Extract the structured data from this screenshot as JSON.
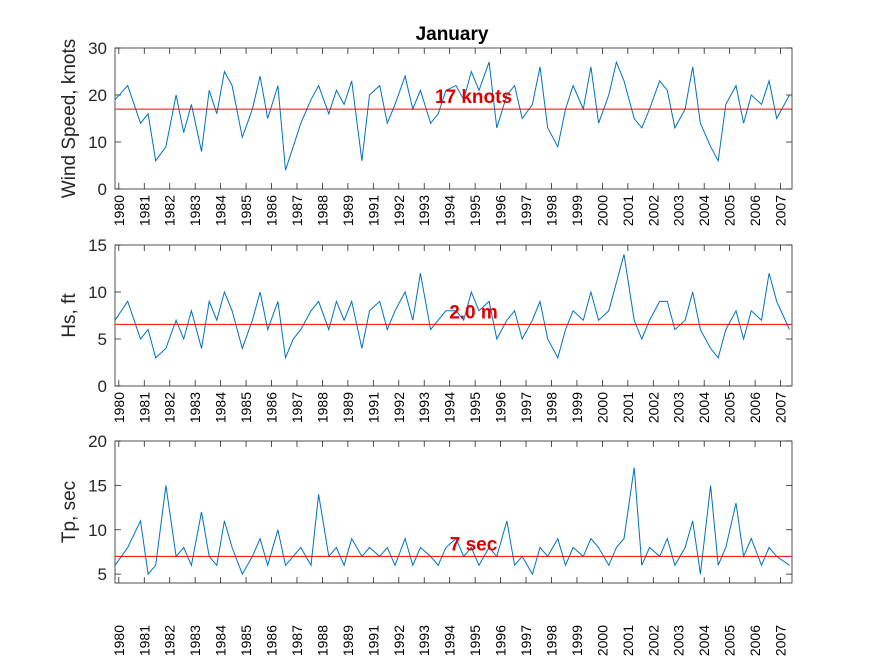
{
  "figure_title": "January",
  "colors": {
    "series": "#0072BD",
    "reference": "#FF0000",
    "axis": "#262626",
    "annotation": "#E00000"
  },
  "x_tick_labels": [
    "1980",
    "1981",
    "1982",
    "1983",
    "1984",
    "1985",
    "1986",
    "1987",
    "1988",
    "1989",
    "1991",
    "1992",
    "1993",
    "1994",
    "1995",
    "1996",
    "1997",
    "1998",
    "1999",
    "2000",
    "2001",
    "2002",
    "2003",
    "2004",
    "2005",
    "2006",
    "2007"
  ],
  "chart_data": [
    {
      "type": "line",
      "title": "January",
      "ylabel": "Wind Speed, knots",
      "ylim": [
        0,
        30
      ],
      "yticks": [
        0,
        10,
        20,
        30
      ],
      "reference_value": 17,
      "annotation": "17 knots",
      "series": [
        {
          "name": "Wind Speed",
          "x": [
            0,
            0.5,
            1,
            1.3,
            1.6,
            2,
            2.4,
            2.7,
            3,
            3.4,
            3.7,
            4,
            4.3,
            4.6,
            5,
            5.4,
            5.7,
            6,
            6.4,
            6.7,
            7,
            7.3,
            7.7,
            8,
            8.4,
            8.7,
            9,
            9.3,
            9.7,
            10,
            10.4,
            10.7,
            11,
            11.4,
            11.7,
            12,
            12.4,
            12.7,
            13,
            13.4,
            13.7,
            14,
            14.3,
            14.7,
            15,
            15.4,
            15.7,
            16,
            16.4,
            16.7,
            17,
            17.4,
            17.7,
            18,
            18.4,
            18.7,
            19,
            19.4,
            19.7,
            20,
            20.4,
            20.7,
            21,
            21.4,
            21.7,
            22,
            22.4,
            22.7,
            23,
            23.4,
            23.7,
            24,
            24.4,
            24.7,
            25,
            25.4,
            25.7,
            26,
            26.5
          ],
          "values": [
            19,
            22,
            14,
            16,
            6,
            9,
            20,
            12,
            18,
            8,
            21,
            16,
            25,
            22,
            11,
            17,
            24,
            15,
            22,
            4,
            9,
            14,
            19,
            22,
            16,
            21,
            18,
            23,
            6,
            20,
            22,
            14,
            18,
            24,
            17,
            21,
            14,
            16,
            21,
            22,
            19,
            25,
            21,
            27,
            13,
            20,
            22,
            15,
            18,
            26,
            13,
            9,
            17,
            22,
            17,
            26,
            14,
            20,
            27,
            23,
            15,
            13,
            17,
            23,
            21,
            13,
            17,
            26,
            14,
            9,
            6,
            18,
            22,
            14,
            20,
            18,
            23,
            15,
            20
          ]
        }
      ]
    },
    {
      "type": "line",
      "title": "",
      "ylabel": "Hs, ft",
      "ylim": [
        0,
        15
      ],
      "yticks": [
        0,
        5,
        10,
        15
      ],
      "reference_value": 6.56,
      "annotation": "2.0 m",
      "series": [
        {
          "name": "Hs",
          "x": [
            0,
            0.5,
            1,
            1.3,
            1.6,
            2,
            2.4,
            2.7,
            3,
            3.4,
            3.7,
            4,
            4.3,
            4.6,
            5,
            5.4,
            5.7,
            6,
            6.4,
            6.7,
            7,
            7.3,
            7.7,
            8,
            8.4,
            8.7,
            9,
            9.3,
            9.7,
            10,
            10.4,
            10.7,
            11,
            11.4,
            11.7,
            12,
            12.4,
            12.7,
            13,
            13.4,
            13.7,
            14,
            14.3,
            14.7,
            15,
            15.4,
            15.7,
            16,
            16.4,
            16.7,
            17,
            17.4,
            17.7,
            18,
            18.4,
            18.7,
            19,
            19.4,
            19.7,
            20,
            20.4,
            20.7,
            21,
            21.4,
            21.7,
            22,
            22.4,
            22.7,
            23,
            23.4,
            23.7,
            24,
            24.4,
            24.7,
            25,
            25.4,
            25.7,
            26,
            26.5
          ],
          "values": [
            7,
            9,
            5,
            6,
            3,
            4,
            7,
            5,
            8,
            4,
            9,
            7,
            10,
            8,
            4,
            7,
            10,
            6,
            9,
            3,
            5,
            6,
            8,
            9,
            6,
            9,
            7,
            9,
            4,
            8,
            9,
            6,
            8,
            10,
            7,
            12,
            6,
            7,
            8,
            8,
            7,
            10,
            8,
            9,
            5,
            7,
            8,
            5,
            7,
            9,
            5,
            3,
            6,
            8,
            7,
            10,
            7,
            8,
            11,
            14,
            7,
            5,
            7,
            9,
            9,
            6,
            7,
            10,
            6,
            4,
            3,
            6,
            8,
            5,
            8,
            7,
            12,
            9,
            6
          ]
        }
      ]
    },
    {
      "type": "line",
      "title": "",
      "ylabel": "Tp, sec",
      "ylim": [
        4,
        20
      ],
      "yticks": [
        5,
        10,
        15,
        20
      ],
      "reference_value": 7,
      "annotation": "7 sec",
      "series": [
        {
          "name": "Tp",
          "x": [
            0,
            0.5,
            1,
            1.3,
            1.6,
            2,
            2.4,
            2.7,
            3,
            3.4,
            3.7,
            4,
            4.3,
            4.6,
            5,
            5.4,
            5.7,
            6,
            6.4,
            6.7,
            7,
            7.3,
            7.7,
            8,
            8.4,
            8.7,
            9,
            9.3,
            9.7,
            10,
            10.4,
            10.7,
            11,
            11.4,
            11.7,
            12,
            12.4,
            12.7,
            13,
            13.4,
            13.7,
            14,
            14.3,
            14.7,
            15,
            15.4,
            15.7,
            16,
            16.4,
            16.7,
            17,
            17.4,
            17.7,
            18,
            18.4,
            18.7,
            19,
            19.4,
            19.7,
            20,
            20.4,
            20.7,
            21,
            21.4,
            21.7,
            22,
            22.4,
            22.7,
            23,
            23.4,
            23.7,
            24,
            24.4,
            24.7,
            25,
            25.4,
            25.7,
            26,
            26.5
          ],
          "values": [
            6,
            8,
            11,
            5,
            6,
            15,
            7,
            8,
            6,
            12,
            7,
            6,
            11,
            8,
            5,
            7,
            9,
            6,
            10,
            6,
            7,
            8,
            6,
            14,
            7,
            8,
            6,
            9,
            7,
            8,
            7,
            8,
            6,
            9,
            6,
            8,
            7,
            6,
            8,
            9,
            7,
            8,
            6,
            8,
            7,
            11,
            6,
            7,
            5,
            8,
            7,
            9,
            6,
            8,
            7,
            9,
            8,
            6,
            8,
            9,
            17,
            6,
            8,
            7,
            9,
            6,
            8,
            11,
            5,
            15,
            6,
            8,
            13,
            7,
            9,
            6,
            8,
            7,
            6
          ]
        }
      ]
    }
  ]
}
